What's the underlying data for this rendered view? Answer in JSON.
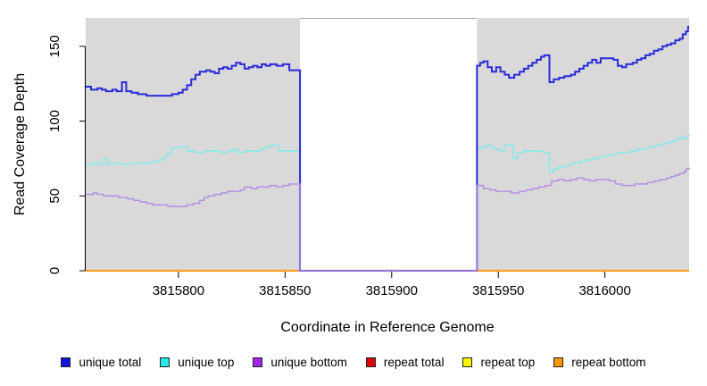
{
  "chart_data": {
    "type": "line",
    "step": true,
    "title": "",
    "xlabel": "Coordinate in Reference Genome",
    "ylabel": "Read Coverage Depth",
    "xlim": [
      3815756.5,
      3816039.5
    ],
    "ylim": [
      0,
      169
    ],
    "x_tick_values": [
      3815800,
      3815850,
      3815900,
      3815950,
      3816000
    ],
    "x_tick_labels": [
      "3815800",
      "3815850",
      "3815900",
      "3815950",
      "3816000"
    ],
    "y_tick_values": [
      0,
      50,
      100,
      150
    ],
    "y_tick_labels": [
      "0",
      "50",
      "100",
      "150"
    ],
    "panel_bg": "#d9d9d9",
    "axis_color": "#000000",
    "grid": "off",
    "legend_position": "bottom",
    "gap_region": {
      "start": 3815857,
      "end": 3815940,
      "fill": "#ffffff",
      "top_border_color": "#a3a3a3"
    },
    "legend": [
      {
        "label": "unique total",
        "color": "#1313e6"
      },
      {
        "label": "unique top",
        "color": "#26e8e8"
      },
      {
        "label": "unique bottom",
        "color": "#a128ea"
      },
      {
        "label": "repeat total",
        "color": "#e00000"
      },
      {
        "label": "repeat top",
        "color": "#f5f500"
      },
      {
        "label": "repeat bottom",
        "color": "#ff9400"
      }
    ],
    "series": [
      {
        "name": "repeat total",
        "color": "#dd0000",
        "width": 1.4,
        "points": [
          [
            3815756.5,
            0
          ],
          [
            3816039.5,
            0
          ]
        ]
      },
      {
        "name": "repeat top",
        "color": "#f0f000",
        "width": 1.4,
        "points": [
          [
            3815756.5,
            0
          ],
          [
            3816039.5,
            0
          ]
        ]
      },
      {
        "name": "repeat bottom",
        "color": "#ff9e1f",
        "width": 2.2,
        "points": [
          [
            3815756.5,
            0
          ],
          [
            3816039.5,
            0
          ]
        ]
      },
      {
        "name": "unique top",
        "color": "#80eaea",
        "width": 1.4,
        "points": [
          [
            3815756.5,
            71
          ],
          [
            3815760,
            72
          ],
          [
            3815763,
            71
          ],
          [
            3815765,
            75
          ],
          [
            3815767,
            71
          ],
          [
            3815770,
            72
          ],
          [
            3815773,
            71
          ],
          [
            3815778,
            72
          ],
          [
            3815783,
            72
          ],
          [
            3815788,
            73
          ],
          [
            3815791,
            74
          ],
          [
            3815793,
            76
          ],
          [
            3815795,
            79
          ],
          [
            3815797,
            82
          ],
          [
            3815801,
            83
          ],
          [
            3815804,
            80
          ],
          [
            3815808,
            79
          ],
          [
            3815812,
            80
          ],
          [
            3815816,
            80
          ],
          [
            3815820,
            79
          ],
          [
            3815823,
            80
          ],
          [
            3815826,
            81
          ],
          [
            3815828,
            79
          ],
          [
            3815831,
            80
          ],
          [
            3815834,
            80
          ],
          [
            3815838,
            81
          ],
          [
            3815841,
            83
          ],
          [
            3815844,
            84
          ],
          [
            3815847,
            80
          ],
          [
            3815850,
            80
          ],
          [
            3815853,
            80
          ],
          [
            3815857,
            0
          ],
          [
            3815940,
            82
          ],
          [
            3815943,
            83
          ],
          [
            3815945,
            84
          ],
          [
            3815947,
            82
          ],
          [
            3815949,
            81
          ],
          [
            3815951,
            80
          ],
          [
            3815953,
            84
          ],
          [
            3815955,
            84
          ],
          [
            3815957,
            75
          ],
          [
            3815959,
            79
          ],
          [
            3815962,
            80
          ],
          [
            3815968,
            80
          ],
          [
            3815971,
            79
          ],
          [
            3815974,
            66
          ],
          [
            3815976,
            68
          ],
          [
            3815978,
            69
          ],
          [
            3815980,
            70
          ],
          [
            3815983,
            71
          ],
          [
            3815985,
            72
          ],
          [
            3815988,
            73
          ],
          [
            3815991,
            74
          ],
          [
            3815994,
            75
          ],
          [
            3815997,
            76
          ],
          [
            3816000,
            77
          ],
          [
            3816003,
            78
          ],
          [
            3816006,
            79
          ],
          [
            3816009,
            79
          ],
          [
            3816012,
            80
          ],
          [
            3816015,
            81
          ],
          [
            3816018,
            82
          ],
          [
            3816021,
            83
          ],
          [
            3816024,
            84
          ],
          [
            3816027,
            85
          ],
          [
            3816030,
            86
          ],
          [
            3816032,
            87
          ],
          [
            3816034,
            89
          ],
          [
            3816036,
            88
          ],
          [
            3816038,
            90
          ],
          [
            3816039.5,
            91
          ]
        ]
      },
      {
        "name": "unique total",
        "color": "#2b2bd9",
        "width": 2,
        "points": [
          [
            3815756.5,
            123
          ],
          [
            3815759,
            121
          ],
          [
            3815762,
            122
          ],
          [
            3815764,
            121
          ],
          [
            3815766,
            120
          ],
          [
            3815769,
            121
          ],
          [
            3815771,
            120
          ],
          [
            3815773.5,
            126
          ],
          [
            3815775.5,
            120
          ],
          [
            3815778,
            119
          ],
          [
            3815781,
            118
          ],
          [
            3815785,
            117
          ],
          [
            3815792,
            117
          ],
          [
            3815797,
            118
          ],
          [
            3815800,
            119
          ],
          [
            3815802,
            121
          ],
          [
            3815804,
            124
          ],
          [
            3815806,
            128
          ],
          [
            3815808,
            131
          ],
          [
            3815810,
            133
          ],
          [
            3815813,
            134
          ],
          [
            3815815,
            133
          ],
          [
            3815817,
            132
          ],
          [
            3815819,
            135
          ],
          [
            3815821,
            136
          ],
          [
            3815823,
            135
          ],
          [
            3815825,
            137
          ],
          [
            3815827,
            139
          ],
          [
            3815829,
            138
          ],
          [
            3815831,
            135
          ],
          [
            3815833,
            136
          ],
          [
            3815835,
            137
          ],
          [
            3815837,
            136
          ],
          [
            3815839,
            138
          ],
          [
            3815841,
            137
          ],
          [
            3815843,
            138
          ],
          [
            3815846,
            137
          ],
          [
            3815849,
            138
          ],
          [
            3815852,
            134
          ],
          [
            3815857,
            0
          ],
          [
            3815940,
            137
          ],
          [
            3815941.5,
            139
          ],
          [
            3815943,
            140
          ],
          [
            3815945,
            136
          ],
          [
            3815947,
            133
          ],
          [
            3815949,
            136
          ],
          [
            3815951,
            133
          ],
          [
            3815953,
            131
          ],
          [
            3815955,
            129
          ],
          [
            3815957.5,
            131
          ],
          [
            3815960,
            133
          ],
          [
            3815962,
            135
          ],
          [
            3815964,
            137
          ],
          [
            3815966,
            139
          ],
          [
            3815968,
            141
          ],
          [
            3815970,
            143
          ],
          [
            3815971.5,
            144
          ],
          [
            3815974,
            126
          ],
          [
            3815976,
            128
          ],
          [
            3815978.5,
            129
          ],
          [
            3815981,
            130
          ],
          [
            3815984,
            131
          ],
          [
            3815986,
            133
          ],
          [
            3815988,
            135
          ],
          [
            3815990,
            137
          ],
          [
            3815992,
            139
          ],
          [
            3815994,
            141
          ],
          [
            3815996,
            139
          ],
          [
            3815998,
            142
          ],
          [
            3816001,
            142
          ],
          [
            3816004,
            141
          ],
          [
            3816006,
            137
          ],
          [
            3816008,
            136
          ],
          [
            3816010,
            138
          ],
          [
            3816013,
            139
          ],
          [
            3816015,
            141
          ],
          [
            3816017,
            142
          ],
          [
            3816019,
            144
          ],
          [
            3816021,
            145
          ],
          [
            3816023,
            147
          ],
          [
            3816025,
            148
          ],
          [
            3816027,
            150
          ],
          [
            3816029,
            151
          ],
          [
            3816031,
            152
          ],
          [
            3816033,
            154
          ],
          [
            3816035,
            155
          ],
          [
            3816036.5,
            158
          ],
          [
            3816038,
            160
          ],
          [
            3816039,
            163
          ],
          [
            3816039.5,
            163
          ]
        ]
      },
      {
        "name": "unique bottom",
        "color": "#b48ce4",
        "width": 1.4,
        "points": [
          [
            3815756.5,
            51
          ],
          [
            3815760,
            52
          ],
          [
            3815762,
            51
          ],
          [
            3815765,
            50
          ],
          [
            3815768,
            50
          ],
          [
            3815772,
            49
          ],
          [
            3815776,
            48
          ],
          [
            3815779,
            47
          ],
          [
            3815782,
            46
          ],
          [
            3815785,
            45
          ],
          [
            3815788,
            44
          ],
          [
            3815795,
            43
          ],
          [
            3815801,
            43
          ],
          [
            3815804,
            44
          ],
          [
            3815807,
            45
          ],
          [
            3815810,
            47
          ],
          [
            3815812,
            49
          ],
          [
            3815814,
            50
          ],
          [
            3815817,
            51
          ],
          [
            3815820,
            52
          ],
          [
            3815823,
            53
          ],
          [
            3815826,
            53
          ],
          [
            3815829,
            54
          ],
          [
            3815831,
            56
          ],
          [
            3815834,
            55
          ],
          [
            3815837,
            56
          ],
          [
            3815840,
            56
          ],
          [
            3815843,
            57
          ],
          [
            3815846,
            56
          ],
          [
            3815849,
            57
          ],
          [
            3815852,
            58
          ],
          [
            3815855,
            58
          ],
          [
            3815857,
            0
          ],
          [
            3815940,
            57
          ],
          [
            3815943,
            55
          ],
          [
            3815946,
            54
          ],
          [
            3815949,
            53
          ],
          [
            3815952,
            53
          ],
          [
            3815956,
            52
          ],
          [
            3815960,
            53
          ],
          [
            3815963,
            54
          ],
          [
            3815966,
            55
          ],
          [
            3815969,
            56
          ],
          [
            3815972,
            57
          ],
          [
            3815975,
            60
          ],
          [
            3815978,
            61
          ],
          [
            3815981,
            60
          ],
          [
            3815984,
            61
          ],
          [
            3815987,
            62
          ],
          [
            3815990,
            61
          ],
          [
            3815993,
            60
          ],
          [
            3815996,
            61
          ],
          [
            3815999,
            61
          ],
          [
            3816002,
            60
          ],
          [
            3816005,
            58
          ],
          [
            3816008,
            57
          ],
          [
            3816011,
            57
          ],
          [
            3816014,
            58
          ],
          [
            3816017,
            58
          ],
          [
            3816020,
            59
          ],
          [
            3816023,
            60
          ],
          [
            3816026,
            61
          ],
          [
            3816029,
            62
          ],
          [
            3816031,
            63
          ],
          [
            3816033,
            64
          ],
          [
            3816035,
            65
          ],
          [
            3816037,
            66
          ],
          [
            3816038,
            68
          ],
          [
            3816039.5,
            69
          ]
        ]
      }
    ]
  }
}
